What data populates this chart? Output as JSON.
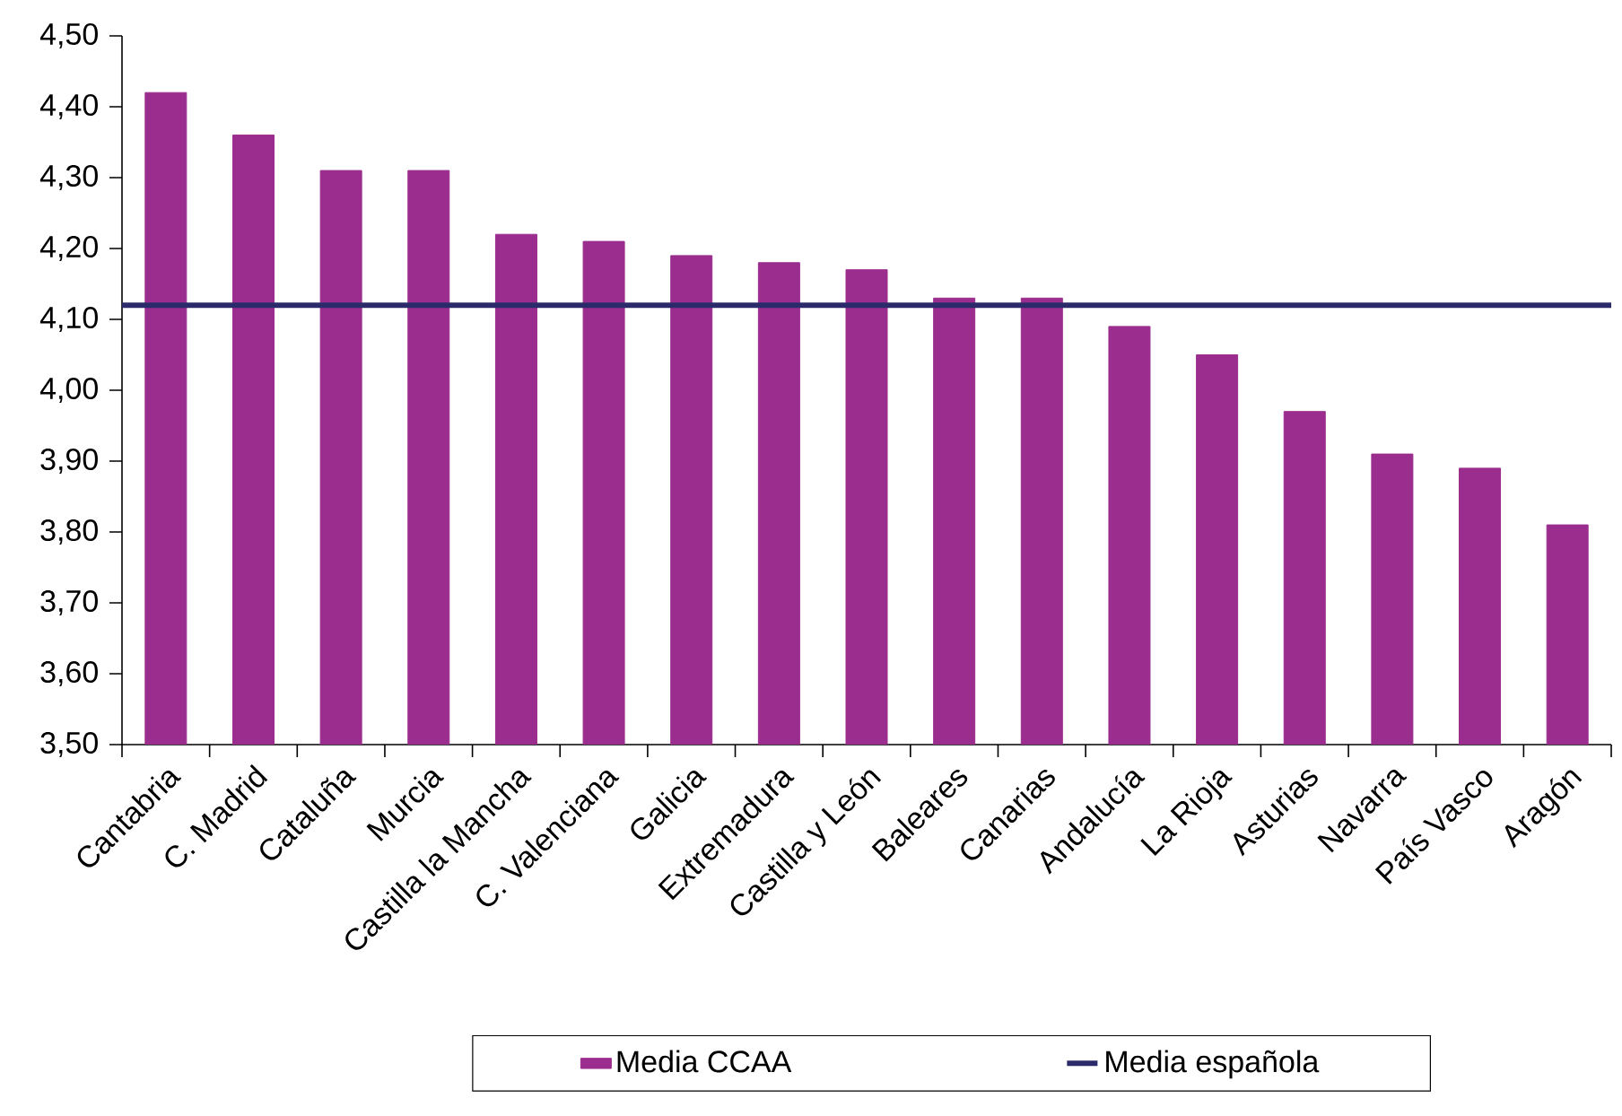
{
  "chart_data": {
    "type": "bar",
    "categories": [
      "Cantabria",
      "C. Madrid",
      "Cataluña",
      "Murcia",
      "Castilla la Mancha",
      "C. Valenciana",
      "Galicia",
      "Extremadura",
      "Castilla y León",
      "Baleares",
      "Canarias",
      "Andalucía",
      "La Rioja",
      "Asturias",
      "Navarra",
      "País Vasco",
      "Aragón"
    ],
    "series": [
      {
        "name": "Media CCAA",
        "color": "#9b2d8e",
        "values": [
          4.42,
          4.36,
          4.31,
          4.31,
          4.22,
          4.21,
          4.19,
          4.18,
          4.17,
          4.13,
          4.13,
          4.09,
          4.05,
          3.97,
          3.91,
          3.89,
          3.81
        ]
      }
    ],
    "ylim": [
      3.5,
      4.5
    ],
    "yticks": [
      {
        "value": 3.5,
        "label": "3,50"
      },
      {
        "value": 3.6,
        "label": "3,60"
      },
      {
        "value": 3.7,
        "label": "3,70"
      },
      {
        "value": 3.8,
        "label": "3,80"
      },
      {
        "value": 3.9,
        "label": "3,90"
      },
      {
        "value": 4.0,
        "label": "4,00"
      },
      {
        "value": 4.1,
        "label": "4,10"
      },
      {
        "value": 4.2,
        "label": "4,20"
      },
      {
        "value": 4.3,
        "label": "4,30"
      },
      {
        "value": 4.4,
        "label": "4,40"
      },
      {
        "value": 4.5,
        "label": "4,50"
      }
    ],
    "ref_lines": [
      {
        "axis": "y",
        "value": 4.12,
        "label": "Media española",
        "color": "#2b2b6b"
      }
    ],
    "legend": "bottom",
    "grid": false
  }
}
